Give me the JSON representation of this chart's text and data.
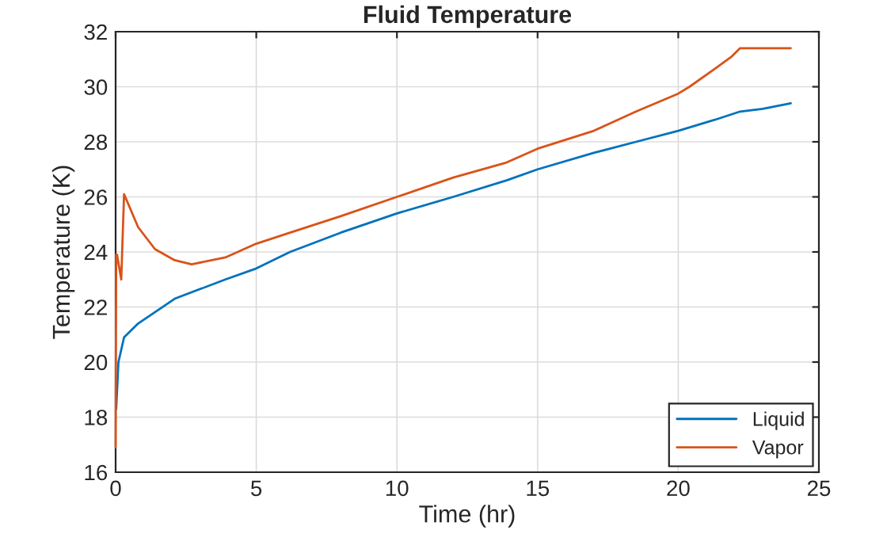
{
  "chart_data": {
    "type": "line",
    "title": "Fluid Temperature",
    "xlabel": "Time (hr)",
    "ylabel": "Temperature (K)",
    "xlim": [
      0,
      25
    ],
    "xticks": [
      0,
      5,
      10,
      15,
      20,
      25
    ],
    "ylim": [
      16,
      32
    ],
    "yticks": [
      16,
      18,
      20,
      22,
      24,
      26,
      28,
      30,
      32
    ],
    "grid": true,
    "legend": "bottom right",
    "series": [
      {
        "name": "Liquid",
        "color": "#0072bd",
        "x": [
          0.02,
          0.1,
          0.3,
          0.8,
          2.1,
          3.9,
          5,
          6.2,
          8,
          10,
          12,
          13.9,
          15,
          17,
          18.5,
          20,
          21.3,
          22.2,
          23,
          24
        ],
        "values": [
          18.3,
          20.0,
          20.9,
          21.4,
          22.3,
          23.0,
          23.4,
          24.0,
          24.7,
          25.4,
          26.0,
          26.6,
          27.0,
          27.6,
          28.0,
          28.4,
          28.8,
          29.1,
          29.2,
          29.4
        ]
      },
      {
        "name": "Vapor",
        "color": "#d95319",
        "x": [
          0,
          0.02,
          0.05,
          0.2,
          0.3,
          0.8,
          1.4,
          2.1,
          2.7,
          3.9,
          5,
          6.2,
          8,
          10,
          12,
          13.9,
          15,
          17,
          18.5,
          20,
          20.4,
          21.3,
          21.9,
          22.2,
          23,
          24
        ],
        "values": [
          16.9,
          23.9,
          23.9,
          23.0,
          26.1,
          24.9,
          24.1,
          23.7,
          23.55,
          23.8,
          24.3,
          24.7,
          25.3,
          26.0,
          26.7,
          27.25,
          27.75,
          28.4,
          29.1,
          29.75,
          30.0,
          30.65,
          31.1,
          31.4,
          31.4,
          31.4
        ]
      }
    ]
  }
}
